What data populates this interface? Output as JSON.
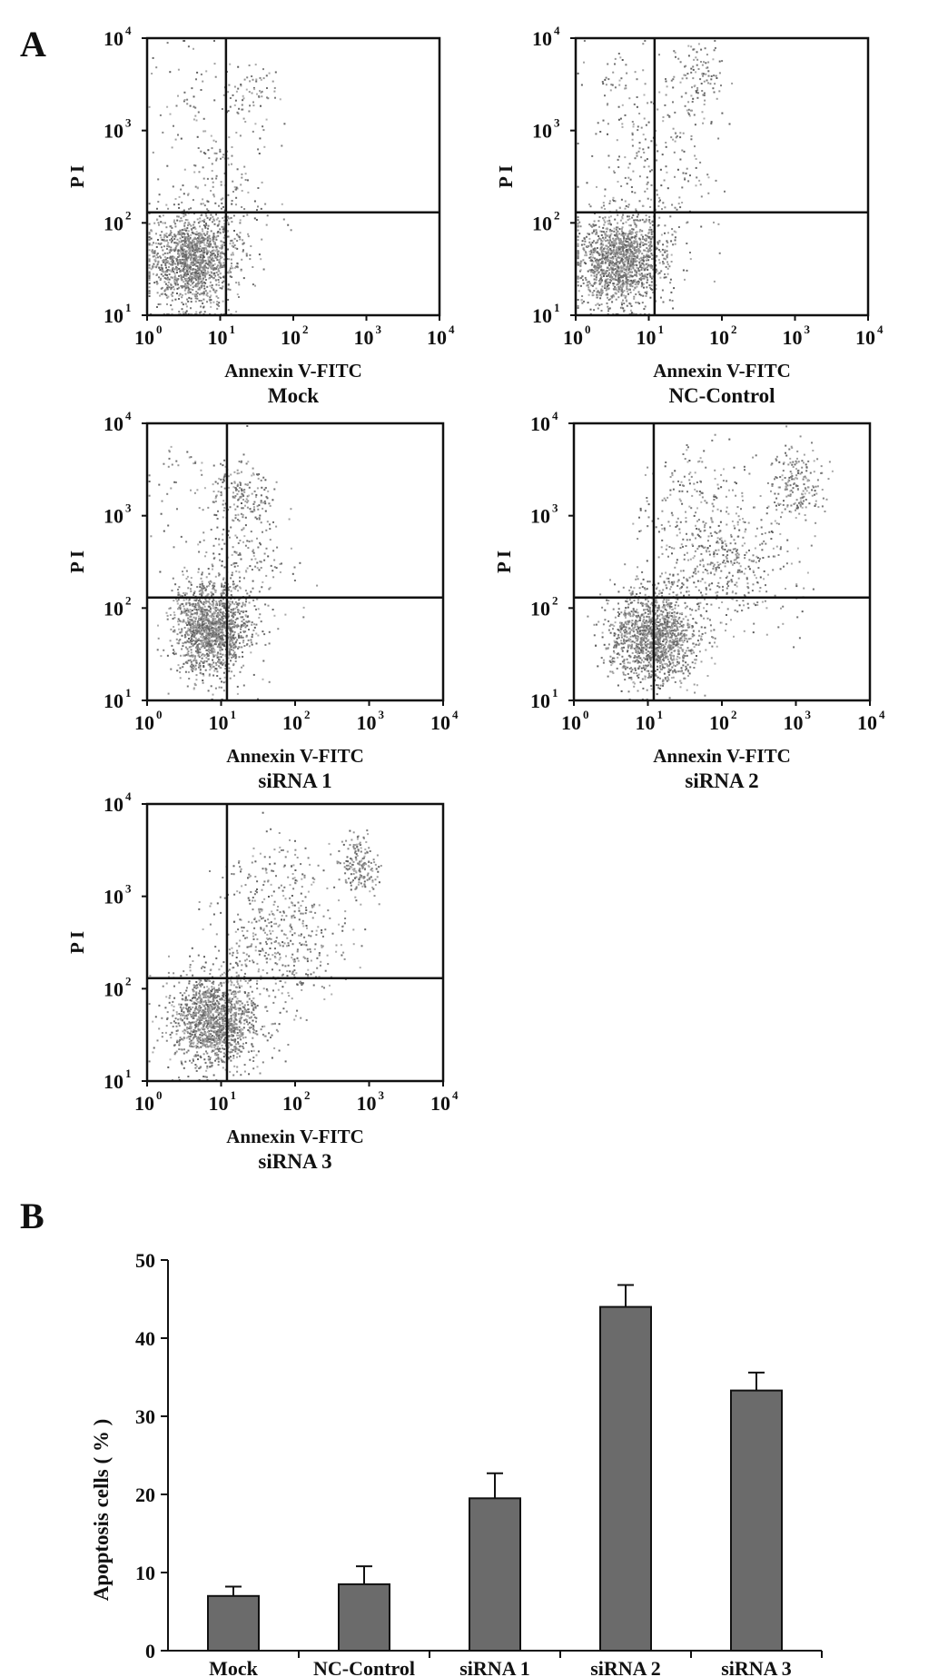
{
  "panel_labels": [
    "A",
    "B"
  ],
  "chart_data": [
    {
      "type": "scatter",
      "title": "Mock",
      "xlabel": "Annexin V-FITC",
      "ylabel": "P I",
      "x_scale": "log",
      "y_scale": "log",
      "xlim": [
        1,
        10000
      ],
      "ylim": [
        10,
        10000
      ],
      "x_ticks": [
        {
          "base": "10",
          "exp": "0"
        },
        {
          "base": "10",
          "exp": "1"
        },
        {
          "base": "10",
          "exp": "2"
        },
        {
          "base": "10",
          "exp": "3"
        },
        {
          "base": "10",
          "exp": "4"
        }
      ],
      "y_ticks": [
        {
          "base": "10",
          "exp": "1"
        },
        {
          "base": "10",
          "exp": "2"
        },
        {
          "base": "10",
          "exp": "3"
        },
        {
          "base": "10",
          "exp": "4"
        }
      ],
      "gate": {
        "x": 12,
        "y": 130
      },
      "populations": [
        {
          "cx": 4,
          "cy": 40,
          "sx": 0.3,
          "sy": 0.25,
          "n": 1400
        },
        {
          "cx": 10,
          "cy": 200,
          "sx": 0.35,
          "sy": 0.45,
          "n": 180
        },
        {
          "cx": 25,
          "cy": 2600,
          "sx": 0.18,
          "sy": 0.18,
          "n": 70
        },
        {
          "cx": 4,
          "cy": 2500,
          "sx": 0.3,
          "sy": 0.3,
          "n": 50
        }
      ]
    },
    {
      "type": "scatter",
      "title": "NC-Control",
      "xlabel": "Annexin V-FITC",
      "ylabel": "P I",
      "x_scale": "log",
      "y_scale": "log",
      "xlim": [
        1,
        10000
      ],
      "ylim": [
        10,
        10000
      ],
      "x_ticks": [
        {
          "base": "10",
          "exp": "0"
        },
        {
          "base": "10",
          "exp": "1"
        },
        {
          "base": "10",
          "exp": "2"
        },
        {
          "base": "10",
          "exp": "3"
        },
        {
          "base": "10",
          "exp": "4"
        }
      ],
      "y_ticks": [
        {
          "base": "10",
          "exp": "1"
        },
        {
          "base": "10",
          "exp": "2"
        },
        {
          "base": "10",
          "exp": "3"
        },
        {
          "base": "10",
          "exp": "4"
        }
      ],
      "gate": {
        "x": 12,
        "y": 130
      },
      "populations": [
        {
          "cx": 4,
          "cy": 40,
          "sx": 0.3,
          "sy": 0.25,
          "n": 1400
        },
        {
          "cx": 12,
          "cy": 300,
          "sx": 0.4,
          "sy": 0.45,
          "n": 200
        },
        {
          "cx": 45,
          "cy": 4000,
          "sx": 0.18,
          "sy": 0.2,
          "n": 110
        },
        {
          "cx": 4,
          "cy": 2500,
          "sx": 0.3,
          "sy": 0.3,
          "n": 60
        }
      ]
    },
    {
      "type": "scatter",
      "title": "siRNA 1",
      "xlabel": "Annexin V-FITC",
      "ylabel": "P I",
      "x_scale": "log",
      "y_scale": "log",
      "xlim": [
        1,
        10000
      ],
      "ylim": [
        10,
        10000
      ],
      "x_ticks": [
        {
          "base": "10",
          "exp": "0"
        },
        {
          "base": "10",
          "exp": "1"
        },
        {
          "base": "10",
          "exp": "2"
        },
        {
          "base": "10",
          "exp": "3"
        },
        {
          "base": "10",
          "exp": "4"
        }
      ],
      "y_ticks": [
        {
          "base": "10",
          "exp": "1"
        },
        {
          "base": "10",
          "exp": "2"
        },
        {
          "base": "10",
          "exp": "3"
        },
        {
          "base": "10",
          "exp": "4"
        }
      ],
      "gate": {
        "x": 12,
        "y": 130
      },
      "populations": [
        {
          "cx": 7,
          "cy": 60,
          "sx": 0.25,
          "sy": 0.25,
          "n": 1400
        },
        {
          "cx": 20,
          "cy": 300,
          "sx": 0.35,
          "sy": 0.4,
          "n": 220
        },
        {
          "cx": 18,
          "cy": 1800,
          "sx": 0.2,
          "sy": 0.18,
          "n": 160
        },
        {
          "cx": 4,
          "cy": 2500,
          "sx": 0.3,
          "sy": 0.3,
          "n": 40
        }
      ]
    },
    {
      "type": "scatter",
      "title": "siRNA 2",
      "xlabel": "Annexin V-FITC",
      "ylabel": "P I",
      "x_scale": "log",
      "y_scale": "log",
      "xlim": [
        1,
        10000
      ],
      "ylim": [
        10,
        10000
      ],
      "x_ticks": [
        {
          "base": "10",
          "exp": "0"
        },
        {
          "base": "10",
          "exp": "1"
        },
        {
          "base": "10",
          "exp": "2"
        },
        {
          "base": "10",
          "exp": "3"
        },
        {
          "base": "10",
          "exp": "4"
        }
      ],
      "y_ticks": [
        {
          "base": "10",
          "exp": "1"
        },
        {
          "base": "10",
          "exp": "2"
        },
        {
          "base": "10",
          "exp": "3"
        },
        {
          "base": "10",
          "exp": "4"
        }
      ],
      "gate": {
        "x": 12,
        "y": 130
      },
      "populations": [
        {
          "cx": 12,
          "cy": 50,
          "sx": 0.3,
          "sy": 0.25,
          "n": 1400
        },
        {
          "cx": 100,
          "cy": 300,
          "sx": 0.45,
          "sy": 0.35,
          "n": 450
        },
        {
          "cx": 1000,
          "cy": 2200,
          "sx": 0.18,
          "sy": 0.18,
          "n": 200
        },
        {
          "cx": 40,
          "cy": 1500,
          "sx": 0.35,
          "sy": 0.3,
          "n": 150
        }
      ]
    },
    {
      "type": "scatter",
      "title": "siRNA 3",
      "xlabel": "Annexin V-FITC",
      "ylabel": "P I",
      "x_scale": "log",
      "y_scale": "log",
      "xlim": [
        1,
        10000
      ],
      "ylim": [
        10,
        10000
      ],
      "x_ticks": [
        {
          "base": "10",
          "exp": "0"
        },
        {
          "base": "10",
          "exp": "1"
        },
        {
          "base": "10",
          "exp": "2"
        },
        {
          "base": "10",
          "exp": "3"
        },
        {
          "base": "10",
          "exp": "4"
        }
      ],
      "y_ticks": [
        {
          "base": "10",
          "exp": "1"
        },
        {
          "base": "10",
          "exp": "2"
        },
        {
          "base": "10",
          "exp": "3"
        },
        {
          "base": "10",
          "exp": "4"
        }
      ],
      "gate": {
        "x": 12,
        "y": 130
      },
      "populations": [
        {
          "cx": 8,
          "cy": 45,
          "sx": 0.3,
          "sy": 0.25,
          "n": 1400
        },
        {
          "cx": 60,
          "cy": 300,
          "sx": 0.45,
          "sy": 0.35,
          "n": 400
        },
        {
          "cx": 700,
          "cy": 2300,
          "sx": 0.15,
          "sy": 0.15,
          "n": 180
        },
        {
          "cx": 40,
          "cy": 1500,
          "sx": 0.35,
          "sy": 0.3,
          "n": 120
        }
      ]
    },
    {
      "type": "bar",
      "categories": [
        "Mock",
        "NC-Control",
        "siRNA 1",
        "siRNA 2",
        "siRNA 3"
      ],
      "values": [
        7,
        8.5,
        19.5,
        44,
        33.3
      ],
      "errors": [
        1.2,
        2.3,
        3.2,
        2.8,
        2.3
      ],
      "ylabel": "Apoptosis cells ( % )",
      "xlabel": "",
      "ylim": [
        0,
        50
      ],
      "yticks": [
        0,
        10,
        20,
        30,
        40,
        50
      ],
      "bar_color": "#6b6b6b"
    }
  ]
}
